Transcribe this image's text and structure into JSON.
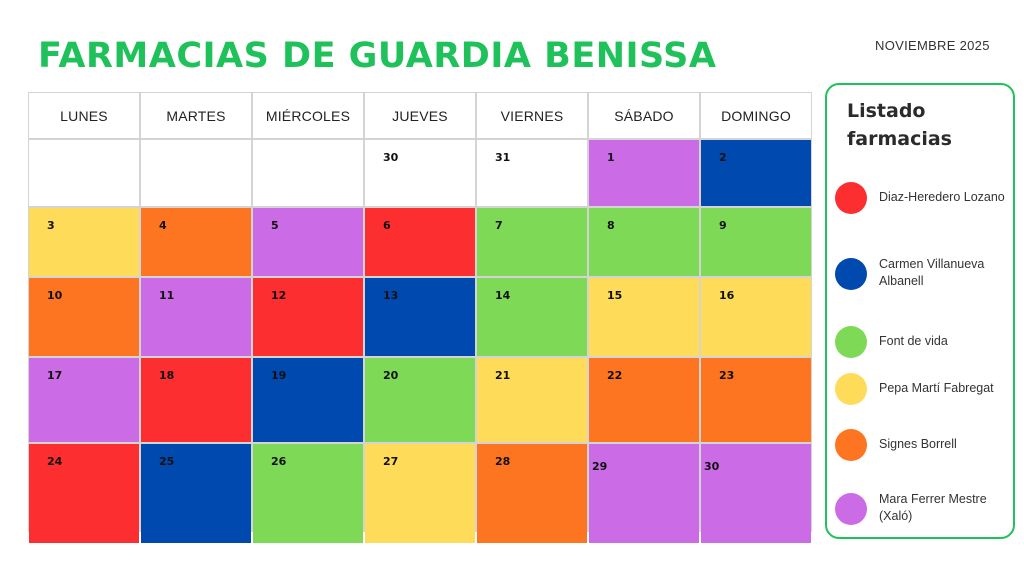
{
  "title": "FARMACIAS DE GUARDIA BENISSA",
  "month": "NOVIEMBRE 2025",
  "days": [
    "LUNES",
    "MARTES",
    "MIÉRCOLES",
    "JUEVES",
    "VIERNES",
    "SÁBADO",
    "DOMINGO"
  ],
  "legend": {
    "title": "Listado farmacias",
    "items": [
      {
        "id": "red",
        "name": "Diaz-Heredero Lozano",
        "color": "#fc2e30"
      },
      {
        "id": "blue",
        "name": "Carmen Villanueva Albanell",
        "color": "#0049ae"
      },
      {
        "id": "green",
        "name": "Font de vida",
        "color": "#7ed957"
      },
      {
        "id": "yellow",
        "name": "Pepa Martí Fabregat",
        "color": "#fedc5a"
      },
      {
        "id": "orange",
        "name": "Signes Borrell",
        "color": "#fe7521"
      },
      {
        "id": "purple",
        "name": "Mara Ferrer Mestre (Xaló)",
        "color": "#cb6ce6"
      }
    ]
  },
  "weeks": [
    [
      {
        "day": ""
      },
      {
        "day": ""
      },
      {
        "day": ""
      },
      {
        "day": "30"
      },
      {
        "day": "31"
      },
      {
        "day": "1",
        "pharmacy": "purple"
      },
      {
        "day": "2",
        "pharmacy": "blue"
      }
    ],
    [
      {
        "day": "3",
        "pharmacy": "yellow"
      },
      {
        "day": "4",
        "pharmacy": "orange"
      },
      {
        "day": "5",
        "pharmacy": "purple"
      },
      {
        "day": "6",
        "pharmacy": "red"
      },
      {
        "day": "7",
        "pharmacy": "green"
      },
      {
        "day": "8",
        "pharmacy": "green"
      },
      {
        "day": "9",
        "pharmacy": "green"
      }
    ],
    [
      {
        "day": "10",
        "pharmacy": "orange"
      },
      {
        "day": "11",
        "pharmacy": "purple"
      },
      {
        "day": "12",
        "pharmacy": "red"
      },
      {
        "day": "13",
        "pharmacy": "blue"
      },
      {
        "day": "14",
        "pharmacy": "green"
      },
      {
        "day": "15",
        "pharmacy": "yellow"
      },
      {
        "day": "16",
        "pharmacy": "yellow"
      }
    ],
    [
      {
        "day": "17",
        "pharmacy": "purple"
      },
      {
        "day": "18",
        "pharmacy": "red"
      },
      {
        "day": "19",
        "pharmacy": "blue"
      },
      {
        "day": "20",
        "pharmacy": "green"
      },
      {
        "day": "21",
        "pharmacy": "yellow"
      },
      {
        "day": "22",
        "pharmacy": "orange"
      },
      {
        "day": "23",
        "pharmacy": "orange"
      }
    ],
    [
      {
        "day": "24",
        "pharmacy": "red"
      },
      {
        "day": "25",
        "pharmacy": "blue"
      },
      {
        "day": "26",
        "pharmacy": "green"
      },
      {
        "day": "27",
        "pharmacy": "yellow"
      },
      {
        "day": "28",
        "pharmacy": "orange"
      },
      {
        "day": "29",
        "pharmacy": "purple"
      },
      {
        "day": "30",
        "pharmacy": "purple"
      }
    ]
  ]
}
